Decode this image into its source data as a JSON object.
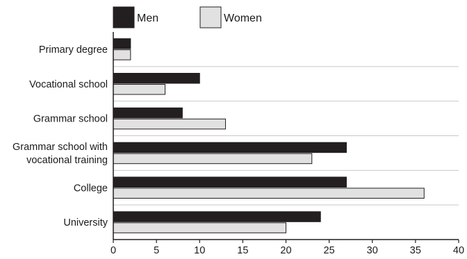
{
  "chart_data": {
    "type": "bar",
    "orientation": "horizontal",
    "categories": [
      [
        "Primary degree"
      ],
      [
        "Vocational school"
      ],
      [
        "Grammar school"
      ],
      [
        "Grammar school with",
        "vocational training"
      ],
      [
        "College"
      ],
      [
        "University"
      ]
    ],
    "series": [
      {
        "name": "Men",
        "color": "#231f20",
        "values": [
          2,
          10,
          8,
          27,
          27,
          24
        ]
      },
      {
        "name": "Women",
        "color": "#e1e1e1",
        "values": [
          2,
          6,
          13,
          23,
          36,
          20
        ]
      }
    ],
    "xlim": [
      0,
      40
    ],
    "xticks": [
      0,
      5,
      10,
      15,
      20,
      25,
      30,
      35,
      40
    ],
    "grid": "horizontal separators between categories",
    "legend": "top",
    "title": "",
    "xlabel": "",
    "ylabel": ""
  }
}
